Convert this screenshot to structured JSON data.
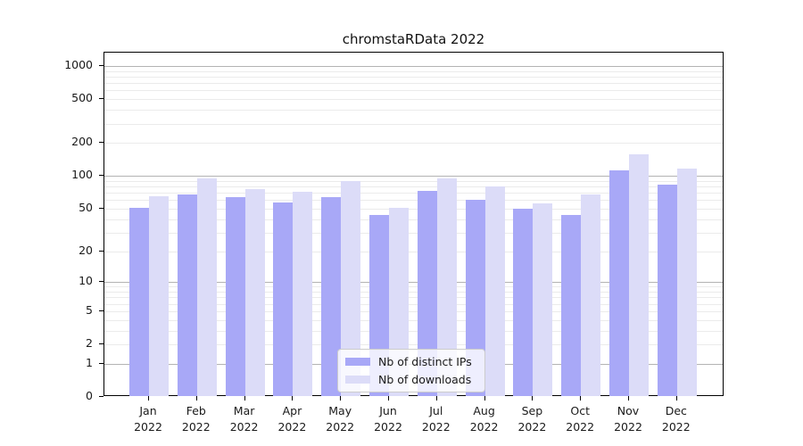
{
  "chart_data": {
    "type": "bar",
    "title": "chromstaRData 2022",
    "categories": [
      "Jan",
      "Feb",
      "Mar",
      "Apr",
      "May",
      "Jun",
      "Jul",
      "Aug",
      "Sep",
      "Oct",
      "Nov",
      "Dec"
    ],
    "category_year": "2022",
    "series": [
      {
        "name": "Nb of distinct IPs",
        "color": "#a8a8f7",
        "values": [
          51,
          67,
          64,
          57,
          64,
          44,
          73,
          60,
          50,
          44,
          113,
          83
        ]
      },
      {
        "name": "Nb of downloads",
        "color": "#dcdcf8",
        "values": [
          65,
          95,
          75,
          72,
          90,
          51,
          94,
          80,
          56,
          67,
          157,
          117
        ]
      }
    ],
    "y_axis": {
      "scale": "log10(value+1)",
      "ticks": [
        0,
        1,
        2,
        5,
        10,
        20,
        50,
        100,
        200,
        500,
        1000
      ],
      "major_gridlines": [
        1,
        10,
        100,
        1000
      ],
      "minor_gridlines": [
        2,
        3,
        4,
        5,
        6,
        7,
        8,
        9,
        20,
        30,
        40,
        50,
        60,
        70,
        80,
        90,
        200,
        300,
        400,
        500,
        600,
        700,
        800,
        900
      ],
      "max": 1000
    },
    "legend": {
      "position": "bottom-center-inside",
      "entries": [
        "Nb of distinct IPs",
        "Nb of downloads"
      ]
    },
    "grid": true,
    "colors": {
      "major_grid": "#b3b3b3",
      "minor_grid": "#ebebeb",
      "axis": "#000000",
      "text": "#1a1a1a"
    }
  }
}
